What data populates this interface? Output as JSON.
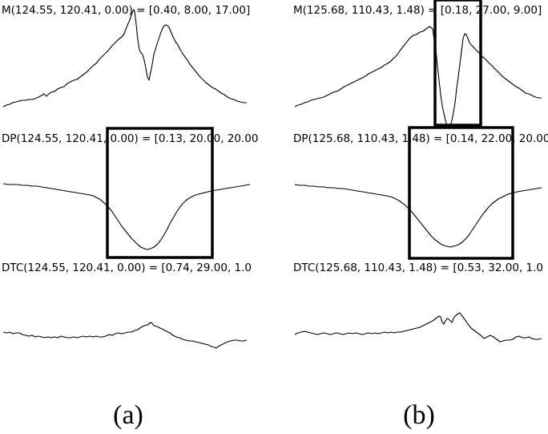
{
  "panels": [
    {
      "caption": "(a)",
      "labels": {
        "m": "M(124.55, 120.41, 0.00) = [0.40, 8.00, 17.00]",
        "dp": "DP(124.55, 120.41, 0.00) = [0.13, 20.00, 20.00",
        "dtc": "DTC(124.55, 120.41, 0.00) = [0.74, 29.00, 1.0"
      }
    },
    {
      "caption": "(b)",
      "labels": {
        "m": "M(125.68, 110.43, 1.48) = [0.18, 27.00, 9.00]",
        "dp": "DP(125.68, 110.43, 1.48) = [0.14, 22.00, 20.00",
        "dtc": "DTC(125.68, 110.43, 1.48) = [0.53, 32.00, 1.0"
      }
    }
  ]
}
